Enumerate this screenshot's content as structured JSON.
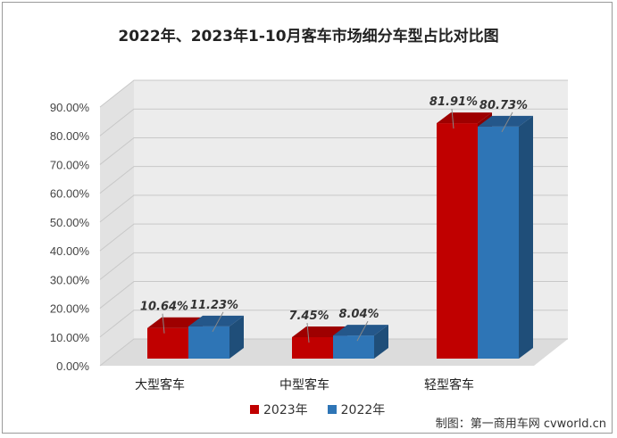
{
  "chart_data": {
    "type": "bar",
    "title": "2022年、2023年1-10月客车市场细分车型占比对比图",
    "categories": [
      "大型客车",
      "中型客车",
      "轻型客车"
    ],
    "series": [
      {
        "name": "2023年",
        "values": [
          10.64,
          7.45,
          81.91
        ],
        "labels": [
          "10.64%",
          "7.45%",
          "81.91%"
        ]
      },
      {
        "name": "2022年",
        "values": [
          11.23,
          8.04,
          80.73
        ],
        "labels": [
          "11.23%",
          "8.04%",
          "80.73%"
        ]
      }
    ],
    "yticks": [
      "0.00%",
      "10.00%",
      "20.00%",
      "30.00%",
      "40.00%",
      "50.00%",
      "60.00%",
      "70.00%",
      "80.00%",
      "90.00%"
    ],
    "ylim": [
      0,
      90
    ],
    "grid": true,
    "legend_position": "bottom"
  },
  "colors": {
    "series_2023": "#c00000",
    "series_2022": "#2e75b6",
    "wall": "#ececec"
  },
  "source": "制图：第一商用车网 cvworld.cn"
}
